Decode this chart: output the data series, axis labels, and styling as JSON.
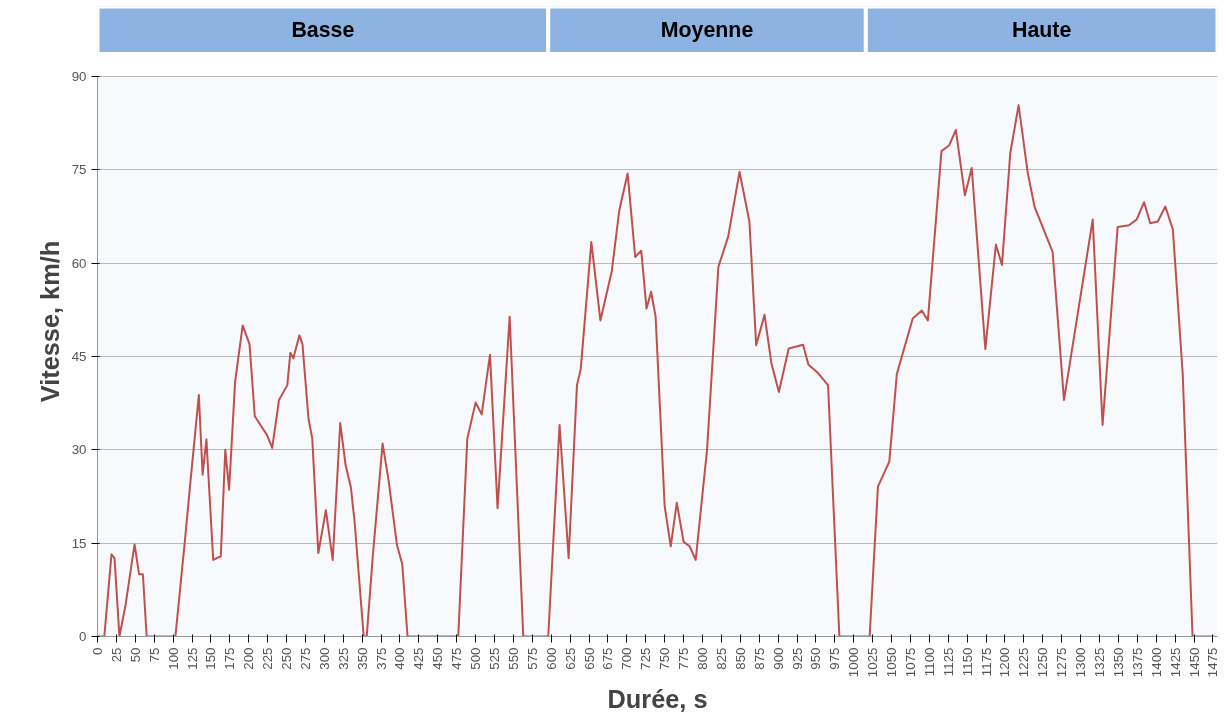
{
  "chart_data": {
    "type": "line",
    "xlabel": "Durée, s",
    "ylabel": "Vitesse, km/h",
    "x": [
      0,
      9,
      18.5,
      22.5,
      29,
      37,
      49,
      55,
      60,
      65,
      103,
      115,
      123,
      134,
      139,
      144,
      153,
      163,
      169,
      174,
      182,
      192,
      201,
      208,
      224,
      231,
      240,
      251,
      255,
      259,
      267,
      271,
      279,
      284,
      292,
      302,
      311,
      321,
      328,
      335,
      340,
      352,
      356,
      364,
      377,
      385,
      396,
      403,
      410,
      477,
      489,
      500,
      508,
      519,
      529,
      545,
      563,
      596,
      611,
      623,
      634,
      639,
      653,
      665,
      680,
      690,
      701,
      711,
      719,
      726,
      732,
      738,
      750,
      758,
      766,
      775,
      783,
      791,
      806,
      821,
      834,
      849,
      862,
      871,
      882,
      891,
      901,
      914,
      933,
      940,
      953,
      966,
      981,
      1021,
      1032,
      1047,
      1057,
      1078,
      1090,
      1098,
      1116,
      1126,
      1135,
      1147,
      1156,
      1174,
      1188,
      1196,
      1207,
      1218,
      1230,
      1239,
      1263,
      1278,
      1316,
      1329,
      1349,
      1364,
      1374,
      1384,
      1392,
      1402,
      1412,
      1422,
      1435,
      1448,
      1477
    ],
    "series": [
      {
        "color": "#c0504d",
        "values": [
          0,
          0,
          13.2,
          12.6,
          0,
          5,
          14.8,
          10,
          10,
          0,
          0,
          14.7,
          25,
          38.8,
          26,
          31.7,
          12.3,
          12.9,
          30,
          23.6,
          41,
          50,
          47,
          35.4,
          32.4,
          30.3,
          38,
          40.4,
          45.6,
          44.7,
          48.4,
          47,
          35,
          31.8,
          13.4,
          20.3,
          12.3,
          34.3,
          27.6,
          24,
          18.4,
          0,
          0,
          12.9,
          31,
          25,
          14.7,
          11.6,
          0,
          0,
          31.8,
          37.6,
          35.7,
          45.3,
          20.6,
          51.4,
          0,
          0,
          34,
          12.6,
          40.4,
          43,
          63.4,
          50.8,
          58.7,
          68.5,
          74.4,
          61,
          62,
          52.7,
          55.4,
          51.4,
          20.9,
          14.5,
          21.5,
          15.2,
          14.5,
          12.3,
          30,
          59.4,
          64.3,
          74.7,
          66.7,
          46.8,
          51.7,
          44,
          39.3,
          46.3,
          46.9,
          43.7,
          42.3,
          40.4,
          0,
          0,
          24.1,
          28.1,
          42.2,
          51.1,
          52.4,
          50.8,
          78,
          78.9,
          81.4,
          70.9,
          75.3,
          46.2,
          63,
          59.7,
          77.7,
          85.4,
          74.6,
          69.1,
          61.8,
          38,
          67,
          34,
          65.8,
          66.1,
          67,
          69.8,
          66.4,
          66.7,
          69.1,
          65.4,
          42.2,
          0,
          0
        ]
      }
    ],
    "xlim": [
      0,
      1481
    ],
    "ylim": [
      0,
      90
    ],
    "xticks": [
      0,
      25,
      50,
      75,
      100,
      125,
      150,
      175,
      200,
      225,
      250,
      275,
      300,
      325,
      350,
      375,
      400,
      425,
      450,
      475,
      500,
      525,
      550,
      575,
      600,
      625,
      650,
      675,
      700,
      725,
      750,
      775,
      800,
      825,
      850,
      875,
      900,
      925,
      950,
      975,
      1000,
      1025,
      1050,
      1075,
      1100,
      1125,
      1150,
      1175,
      1200,
      1225,
      1250,
      1275,
      1300,
      1325,
      1350,
      1375,
      1400,
      1425,
      1450,
      1475
    ],
    "yticks": [
      0,
      15,
      30,
      45,
      60,
      75,
      90
    ],
    "bands": [
      {
        "axis": "x",
        "from": 0,
        "to": 596,
        "label": "Basse",
        "color": "#8db3e2"
      },
      {
        "axis": "x",
        "from": 596,
        "to": 1016,
        "label": "Moyenne",
        "color": "#8db3e2"
      },
      {
        "axis": "x",
        "from": 1016,
        "to": 1481,
        "label": "Haute",
        "color": "#8db3e2"
      }
    ],
    "grid": "y",
    "line_style": "solid",
    "marker": "none"
  }
}
